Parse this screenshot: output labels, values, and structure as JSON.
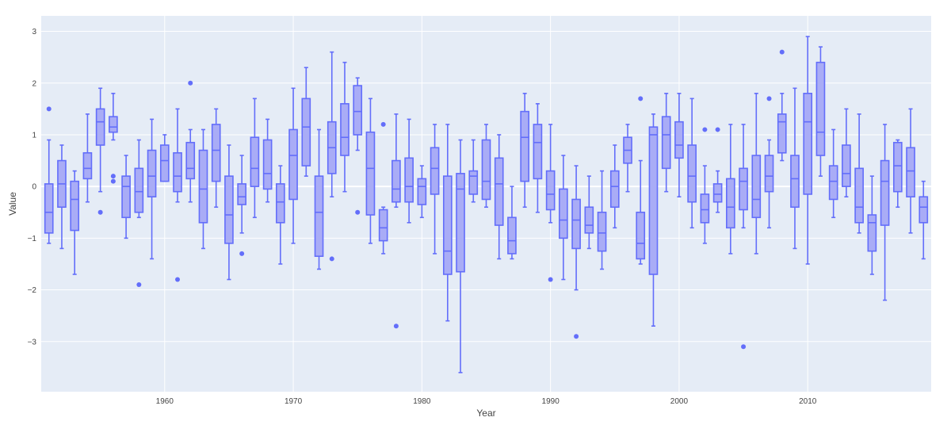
{
  "chart_data": {
    "type": "box",
    "title": "",
    "xlabel": "Year",
    "ylabel": "Value",
    "xlim": [
      1950.4,
      1969.6
    ],
    "ylim": [
      -3.97,
      3.3
    ],
    "x_ticks": [
      1960,
      1970,
      1980,
      1990,
      2000,
      2010
    ],
    "y_ticks": [
      -3,
      -2,
      -1,
      0,
      1,
      2,
      3
    ],
    "grid": true,
    "legend": "none",
    "colors": {
      "plot_bg": "#e5ecf6",
      "box_fill": "#a9acf6",
      "box_line": "#636efa",
      "grid": "#ffffff"
    },
    "boxes": [
      {
        "year": 1951,
        "min": -1.1,
        "q1": -0.9,
        "median": -0.5,
        "q3": 0.05,
        "max": 0.9,
        "outliers": [
          1.5
        ]
      },
      {
        "year": 1952,
        "min": -1.2,
        "q1": -0.4,
        "median": 0.05,
        "q3": 0.5,
        "max": 0.8,
        "outliers": []
      },
      {
        "year": 1953,
        "min": -1.7,
        "q1": -0.85,
        "median": -0.25,
        "q3": 0.1,
        "max": 0.3,
        "outliers": []
      },
      {
        "year": 1954,
        "min": -0.3,
        "q1": 0.15,
        "median": 0.35,
        "q3": 0.65,
        "max": 1.4,
        "outliers": []
      },
      {
        "year": 1955,
        "min": -0.1,
        "q1": 0.8,
        "median": 1.25,
        "q3": 1.5,
        "max": 1.9,
        "outliers": [
          -0.5
        ]
      },
      {
        "year": 1956,
        "min": 0.9,
        "q1": 1.05,
        "median": 1.15,
        "q3": 1.35,
        "max": 1.8,
        "outliers": [
          0.2,
          0.1
        ]
      },
      {
        "year": 1957,
        "min": -1.0,
        "q1": -0.6,
        "median": 0.0,
        "q3": 0.2,
        "max": 0.6,
        "outliers": []
      },
      {
        "year": 1958,
        "min": -0.6,
        "q1": -0.5,
        "median": -0.1,
        "q3": 0.35,
        "max": 0.9,
        "outliers": [
          -1.9
        ]
      },
      {
        "year": 1959,
        "min": -1.4,
        "q1": -0.2,
        "median": 0.2,
        "q3": 0.7,
        "max": 1.3,
        "outliers": []
      },
      {
        "year": 1960,
        "min": 0.1,
        "q1": 0.1,
        "median": 0.5,
        "q3": 0.8,
        "max": 1.0,
        "outliers": []
      },
      {
        "year": 1961,
        "min": -0.3,
        "q1": -0.1,
        "median": 0.2,
        "q3": 0.65,
        "max": 1.5,
        "outliers": [
          -1.8
        ]
      },
      {
        "year": 1962,
        "min": -0.3,
        "q1": 0.15,
        "median": 0.35,
        "q3": 0.85,
        "max": 1.1,
        "outliers": [
          2.0
        ]
      },
      {
        "year": 1963,
        "min": -1.2,
        "q1": -0.7,
        "median": -0.05,
        "q3": 0.7,
        "max": 1.1,
        "outliers": []
      },
      {
        "year": 1964,
        "min": -0.4,
        "q1": 0.1,
        "median": 0.7,
        "q3": 1.2,
        "max": 1.5,
        "outliers": []
      },
      {
        "year": 1965,
        "min": -1.8,
        "q1": -1.1,
        "median": -0.55,
        "q3": 0.2,
        "max": 0.8,
        "outliers": []
      },
      {
        "year": 1966,
        "min": -0.9,
        "q1": -0.35,
        "median": -0.2,
        "q3": 0.05,
        "max": 0.6,
        "outliers": [
          -1.3
        ]
      },
      {
        "year": 1967,
        "min": -0.6,
        "q1": 0.0,
        "median": 0.35,
        "q3": 0.95,
        "max": 1.7,
        "outliers": []
      },
      {
        "year": 1968,
        "min": -0.3,
        "q1": -0.05,
        "median": 0.25,
        "q3": 0.9,
        "max": 1.3,
        "outliers": []
      },
      {
        "year": 1969,
        "min": -1.5,
        "q1": -0.7,
        "median": -0.3,
        "q3": 0.05,
        "max": 0.4,
        "outliers": []
      },
      {
        "year": 1970,
        "min": -1.1,
        "q1": -0.25,
        "median": 0.6,
        "q3": 1.1,
        "max": 1.9,
        "outliers": []
      },
      {
        "year": 1971,
        "min": 0.2,
        "q1": 0.4,
        "median": 1.15,
        "q3": 1.7,
        "max": 2.3,
        "outliers": []
      },
      {
        "year": 1972,
        "min": -1.6,
        "q1": -1.35,
        "median": -0.5,
        "q3": 0.2,
        "max": 1.1,
        "outliers": []
      },
      {
        "year": 1973,
        "min": -0.2,
        "q1": 0.25,
        "median": 0.75,
        "q3": 1.25,
        "max": 2.6,
        "outliers": [
          -1.4
        ]
      },
      {
        "year": 1974,
        "min": -0.1,
        "q1": 0.6,
        "median": 0.95,
        "q3": 1.6,
        "max": 2.4,
        "outliers": []
      },
      {
        "year": 1975,
        "min": 0.7,
        "q1": 1.0,
        "median": 1.45,
        "q3": 1.95,
        "max": 2.1,
        "outliers": [
          -0.5
        ]
      },
      {
        "year": 1976,
        "min": -1.1,
        "q1": -0.55,
        "median": 0.35,
        "q3": 1.05,
        "max": 1.7,
        "outliers": []
      },
      {
        "year": 1977,
        "min": -1.3,
        "q1": -1.05,
        "median": -0.8,
        "q3": -0.45,
        "max": -0.4,
        "outliers": [
          1.2
        ]
      },
      {
        "year": 1978,
        "min": -0.4,
        "q1": -0.3,
        "median": -0.05,
        "q3": 0.5,
        "max": 1.4,
        "outliers": [
          -2.7
        ]
      },
      {
        "year": 1979,
        "min": -0.7,
        "q1": -0.3,
        "median": 0.0,
        "q3": 0.55,
        "max": 1.3,
        "outliers": []
      },
      {
        "year": 1980,
        "min": -0.6,
        "q1": -0.35,
        "median": 0.0,
        "q3": 0.15,
        "max": 0.4,
        "outliers": []
      },
      {
        "year": 1981,
        "min": -1.3,
        "q1": -0.15,
        "median": 0.35,
        "q3": 0.75,
        "max": 1.2,
        "outliers": []
      },
      {
        "year": 1982,
        "min": -2.6,
        "q1": -1.7,
        "median": -1.25,
        "q3": 0.2,
        "max": 1.2,
        "outliers": []
      },
      {
        "year": 1983,
        "min": -3.6,
        "q1": -1.65,
        "median": -0.05,
        "q3": 0.25,
        "max": 0.9,
        "outliers": []
      },
      {
        "year": 1984,
        "min": -0.3,
        "q1": -0.15,
        "median": 0.2,
        "q3": 0.3,
        "max": 0.9,
        "outliers": []
      },
      {
        "year": 1985,
        "min": -0.4,
        "q1": -0.25,
        "median": 0.1,
        "q3": 0.9,
        "max": 1.2,
        "outliers": []
      },
      {
        "year": 1986,
        "min": -1.4,
        "q1": -0.75,
        "median": 0.05,
        "q3": 0.55,
        "max": 1.0,
        "outliers": []
      },
      {
        "year": 1987,
        "min": -1.4,
        "q1": -1.3,
        "median": -1.05,
        "q3": -0.6,
        "max": 0.0,
        "outliers": []
      },
      {
        "year": 1988,
        "min": -0.4,
        "q1": 0.1,
        "median": 0.95,
        "q3": 1.45,
        "max": 1.8,
        "outliers": []
      },
      {
        "year": 1989,
        "min": -0.5,
        "q1": 0.15,
        "median": 0.85,
        "q3": 1.2,
        "max": 1.6,
        "outliers": []
      },
      {
        "year": 1990,
        "min": -0.7,
        "q1": -0.45,
        "median": -0.15,
        "q3": 0.3,
        "max": 1.2,
        "outliers": [
          -1.8
        ]
      },
      {
        "year": 1991,
        "min": -1.8,
        "q1": -1.0,
        "median": -0.65,
        "q3": -0.05,
        "max": 0.6,
        "outliers": []
      },
      {
        "year": 1992,
        "min": -2.0,
        "q1": -1.2,
        "median": -0.65,
        "q3": -0.25,
        "max": 0.4,
        "outliers": [
          -2.9
        ]
      },
      {
        "year": 1993,
        "min": -1.2,
        "q1": -0.9,
        "median": -0.75,
        "q3": -0.4,
        "max": 0.2,
        "outliers": []
      },
      {
        "year": 1994,
        "min": -1.6,
        "q1": -1.25,
        "median": -0.9,
        "q3": -0.5,
        "max": 0.3,
        "outliers": []
      },
      {
        "year": 1995,
        "min": -0.8,
        "q1": -0.4,
        "median": 0.0,
        "q3": 0.3,
        "max": 0.8,
        "outliers": []
      },
      {
        "year": 1996,
        "min": -0.1,
        "q1": 0.45,
        "median": 0.7,
        "q3": 0.95,
        "max": 1.2,
        "outliers": []
      },
      {
        "year": 1997,
        "min": -1.5,
        "q1": -1.4,
        "median": -1.1,
        "q3": -0.5,
        "max": 0.5,
        "outliers": [
          1.7
        ]
      },
      {
        "year": 1998,
        "min": -2.7,
        "q1": -1.7,
        "median": 1.0,
        "q3": 1.15,
        "max": 1.4,
        "outliers": []
      },
      {
        "year": 1999,
        "min": -0.1,
        "q1": 0.35,
        "median": 1.0,
        "q3": 1.35,
        "max": 1.8,
        "outliers": []
      },
      {
        "year": 2000,
        "min": -0.2,
        "q1": 0.55,
        "median": 0.8,
        "q3": 1.25,
        "max": 1.8,
        "outliers": []
      },
      {
        "year": 2001,
        "min": -0.8,
        "q1": -0.3,
        "median": 0.2,
        "q3": 0.8,
        "max": 1.7,
        "outliers": []
      },
      {
        "year": 2002,
        "min": -1.1,
        "q1": -0.7,
        "median": -0.45,
        "q3": -0.15,
        "max": 0.4,
        "outliers": [
          1.1
        ]
      },
      {
        "year": 2003,
        "min": -0.5,
        "q1": -0.3,
        "median": -0.15,
        "q3": 0.05,
        "max": 0.3,
        "outliers": [
          1.1
        ]
      },
      {
        "year": 2004,
        "min": -1.3,
        "q1": -0.8,
        "median": -0.4,
        "q3": 0.15,
        "max": 1.2,
        "outliers": []
      },
      {
        "year": 2005,
        "min": -0.8,
        "q1": -0.45,
        "median": 0.1,
        "q3": 0.35,
        "max": 1.2,
        "outliers": [
          -3.1
        ]
      },
      {
        "year": 2006,
        "min": -1.3,
        "q1": -0.6,
        "median": -0.25,
        "q3": 0.6,
        "max": 1.8,
        "outliers": []
      },
      {
        "year": 2007,
        "min": -0.8,
        "q1": -0.1,
        "median": 0.2,
        "q3": 0.6,
        "max": 0.9,
        "outliers": [
          1.7
        ]
      },
      {
        "year": 2008,
        "min": 0.5,
        "q1": 0.65,
        "median": 1.25,
        "q3": 1.4,
        "max": 1.8,
        "outliers": [
          2.6
        ]
      },
      {
        "year": 2009,
        "min": -1.2,
        "q1": -0.4,
        "median": 0.15,
        "q3": 0.6,
        "max": 1.9,
        "outliers": []
      },
      {
        "year": 2010,
        "min": -1.5,
        "q1": -0.15,
        "median": 1.25,
        "q3": 1.8,
        "max": 2.9,
        "outliers": []
      },
      {
        "year": 2011,
        "min": 0.2,
        "q1": 0.6,
        "median": 1.05,
        "q3": 2.4,
        "max": 2.7,
        "outliers": []
      },
      {
        "year": 2012,
        "min": -0.6,
        "q1": -0.25,
        "median": 0.1,
        "q3": 0.4,
        "max": 1.1,
        "outliers": []
      },
      {
        "year": 2013,
        "min": -0.2,
        "q1": 0.0,
        "median": 0.25,
        "q3": 0.8,
        "max": 1.5,
        "outliers": []
      },
      {
        "year": 2014,
        "min": -0.9,
        "q1": -0.7,
        "median": -0.4,
        "q3": 0.35,
        "max": 1.4,
        "outliers": []
      },
      {
        "year": 2015,
        "min": -1.7,
        "q1": -1.25,
        "median": -0.7,
        "q3": -0.55,
        "max": 0.2,
        "outliers": []
      },
      {
        "year": 2016,
        "min": -2.2,
        "q1": -0.75,
        "median": 0.1,
        "q3": 0.5,
        "max": 1.2,
        "outliers": []
      },
      {
        "year": 2017,
        "min": -0.4,
        "q1": -0.1,
        "median": 0.4,
        "q3": 0.85,
        "max": 0.9,
        "outliers": []
      },
      {
        "year": 2018,
        "min": -0.9,
        "q1": -0.2,
        "median": 0.3,
        "q3": 0.75,
        "max": 1.5,
        "outliers": []
      },
      {
        "year": 2019,
        "min": -1.4,
        "q1": -0.7,
        "median": -0.4,
        "q3": -0.2,
        "max": 0.1,
        "outliers": []
      }
    ]
  }
}
